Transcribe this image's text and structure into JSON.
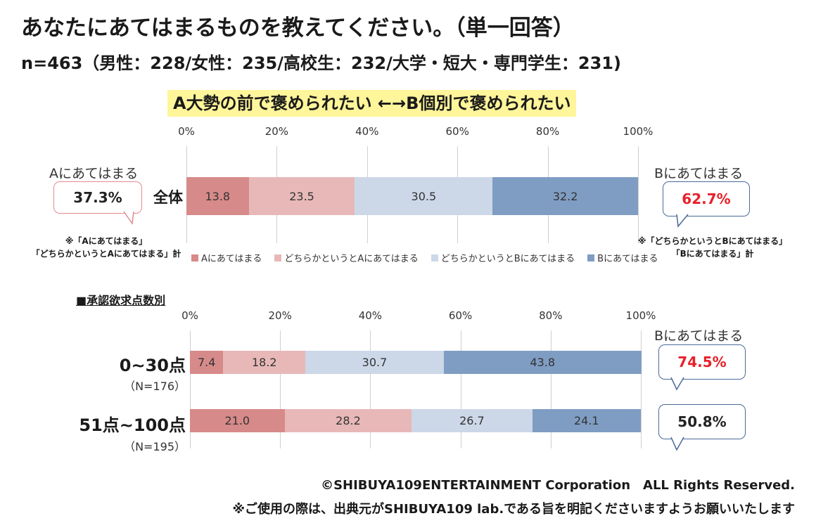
{
  "title": "あなたにあてはまるものを教えてください。（単一回答）",
  "subtitle": "n=463（男性：228/女性：235/高校生：232/大学・短大・専門学生：231)",
  "banner": "A大勢の前で褒められたい ←→B個別で褒められたい",
  "ticks": [
    "0%",
    "20%",
    "40%",
    "60%",
    "80%",
    "100%"
  ],
  "legend": [
    "Aにあてはまる",
    "どちらかというとAにあてはまる",
    "どちらかというとBにあてはまる",
    "Bにあてはまる"
  ],
  "colors": {
    "a": "#d68a89",
    "lean_a": "#e8b8b8",
    "lean_b": "#ccd8e8",
    "b": "#7f9dc3",
    "red": "#e8202a",
    "pink_border": "#e58a8f",
    "blue_border": "#4a6a9a"
  },
  "top_chart": {
    "category": "全体",
    "a_label": "Aにあてはまる",
    "a_total": "37.3%",
    "b_label": "Bにあてはまる",
    "b_total": "62.7%",
    "note_a": "※「Aにあてはまる」\n「どちらかというとAにあてはまる」計",
    "note_b": "※「どちらかというとBにあてはまる」\n「Bにあてはまる」計"
  },
  "section_title": "■承認欲求点数別",
  "bottom_chart": {
    "b_label": "Bにあてはまる",
    "rows": [
      {
        "category": "0~30点",
        "n": "（N=176）",
        "b_total": "74.5%"
      },
      {
        "category": "51点~100点",
        "n": "（N=195）",
        "b_total": "50.8%"
      }
    ]
  },
  "chart_data": [
    {
      "type": "bar",
      "stacked": true,
      "orientation": "horizontal",
      "categories": [
        "全体"
      ],
      "series": [
        {
          "name": "Aにあてはまる",
          "values": [
            13.8
          ]
        },
        {
          "name": "どちらかというとAにあてはまる",
          "values": [
            23.5
          ]
        },
        {
          "name": "どちらかというとBにあてはまる",
          "values": [
            30.5
          ]
        },
        {
          "name": "Bにあてはまる",
          "values": [
            32.2
          ]
        }
      ],
      "xlim": [
        0,
        100
      ],
      "grid": true,
      "legend": "bottom"
    },
    {
      "type": "bar",
      "stacked": true,
      "orientation": "horizontal",
      "categories": [
        "0~30点",
        "51点~100点"
      ],
      "series": [
        {
          "name": "Aにあてはまる",
          "values": [
            7.4,
            21.0
          ]
        },
        {
          "name": "どちらかというとAにあてはまる",
          "values": [
            18.2,
            28.2
          ]
        },
        {
          "name": "どちらかというとBにあてはまる",
          "values": [
            30.7,
            26.7
          ]
        },
        {
          "name": "Bにあてはまる",
          "values": [
            43.8,
            24.1
          ]
        }
      ],
      "xlim": [
        0,
        100
      ],
      "grid": true
    }
  ],
  "footer": {
    "copyright": "©SHIBUYA109ENTERTAINMENT Corporation　ALL Rights Reserved.",
    "usage": "※ご使用の際は、出典元がSHIBUYA109 lab.である旨を明記くださいますようお願いいたします"
  }
}
